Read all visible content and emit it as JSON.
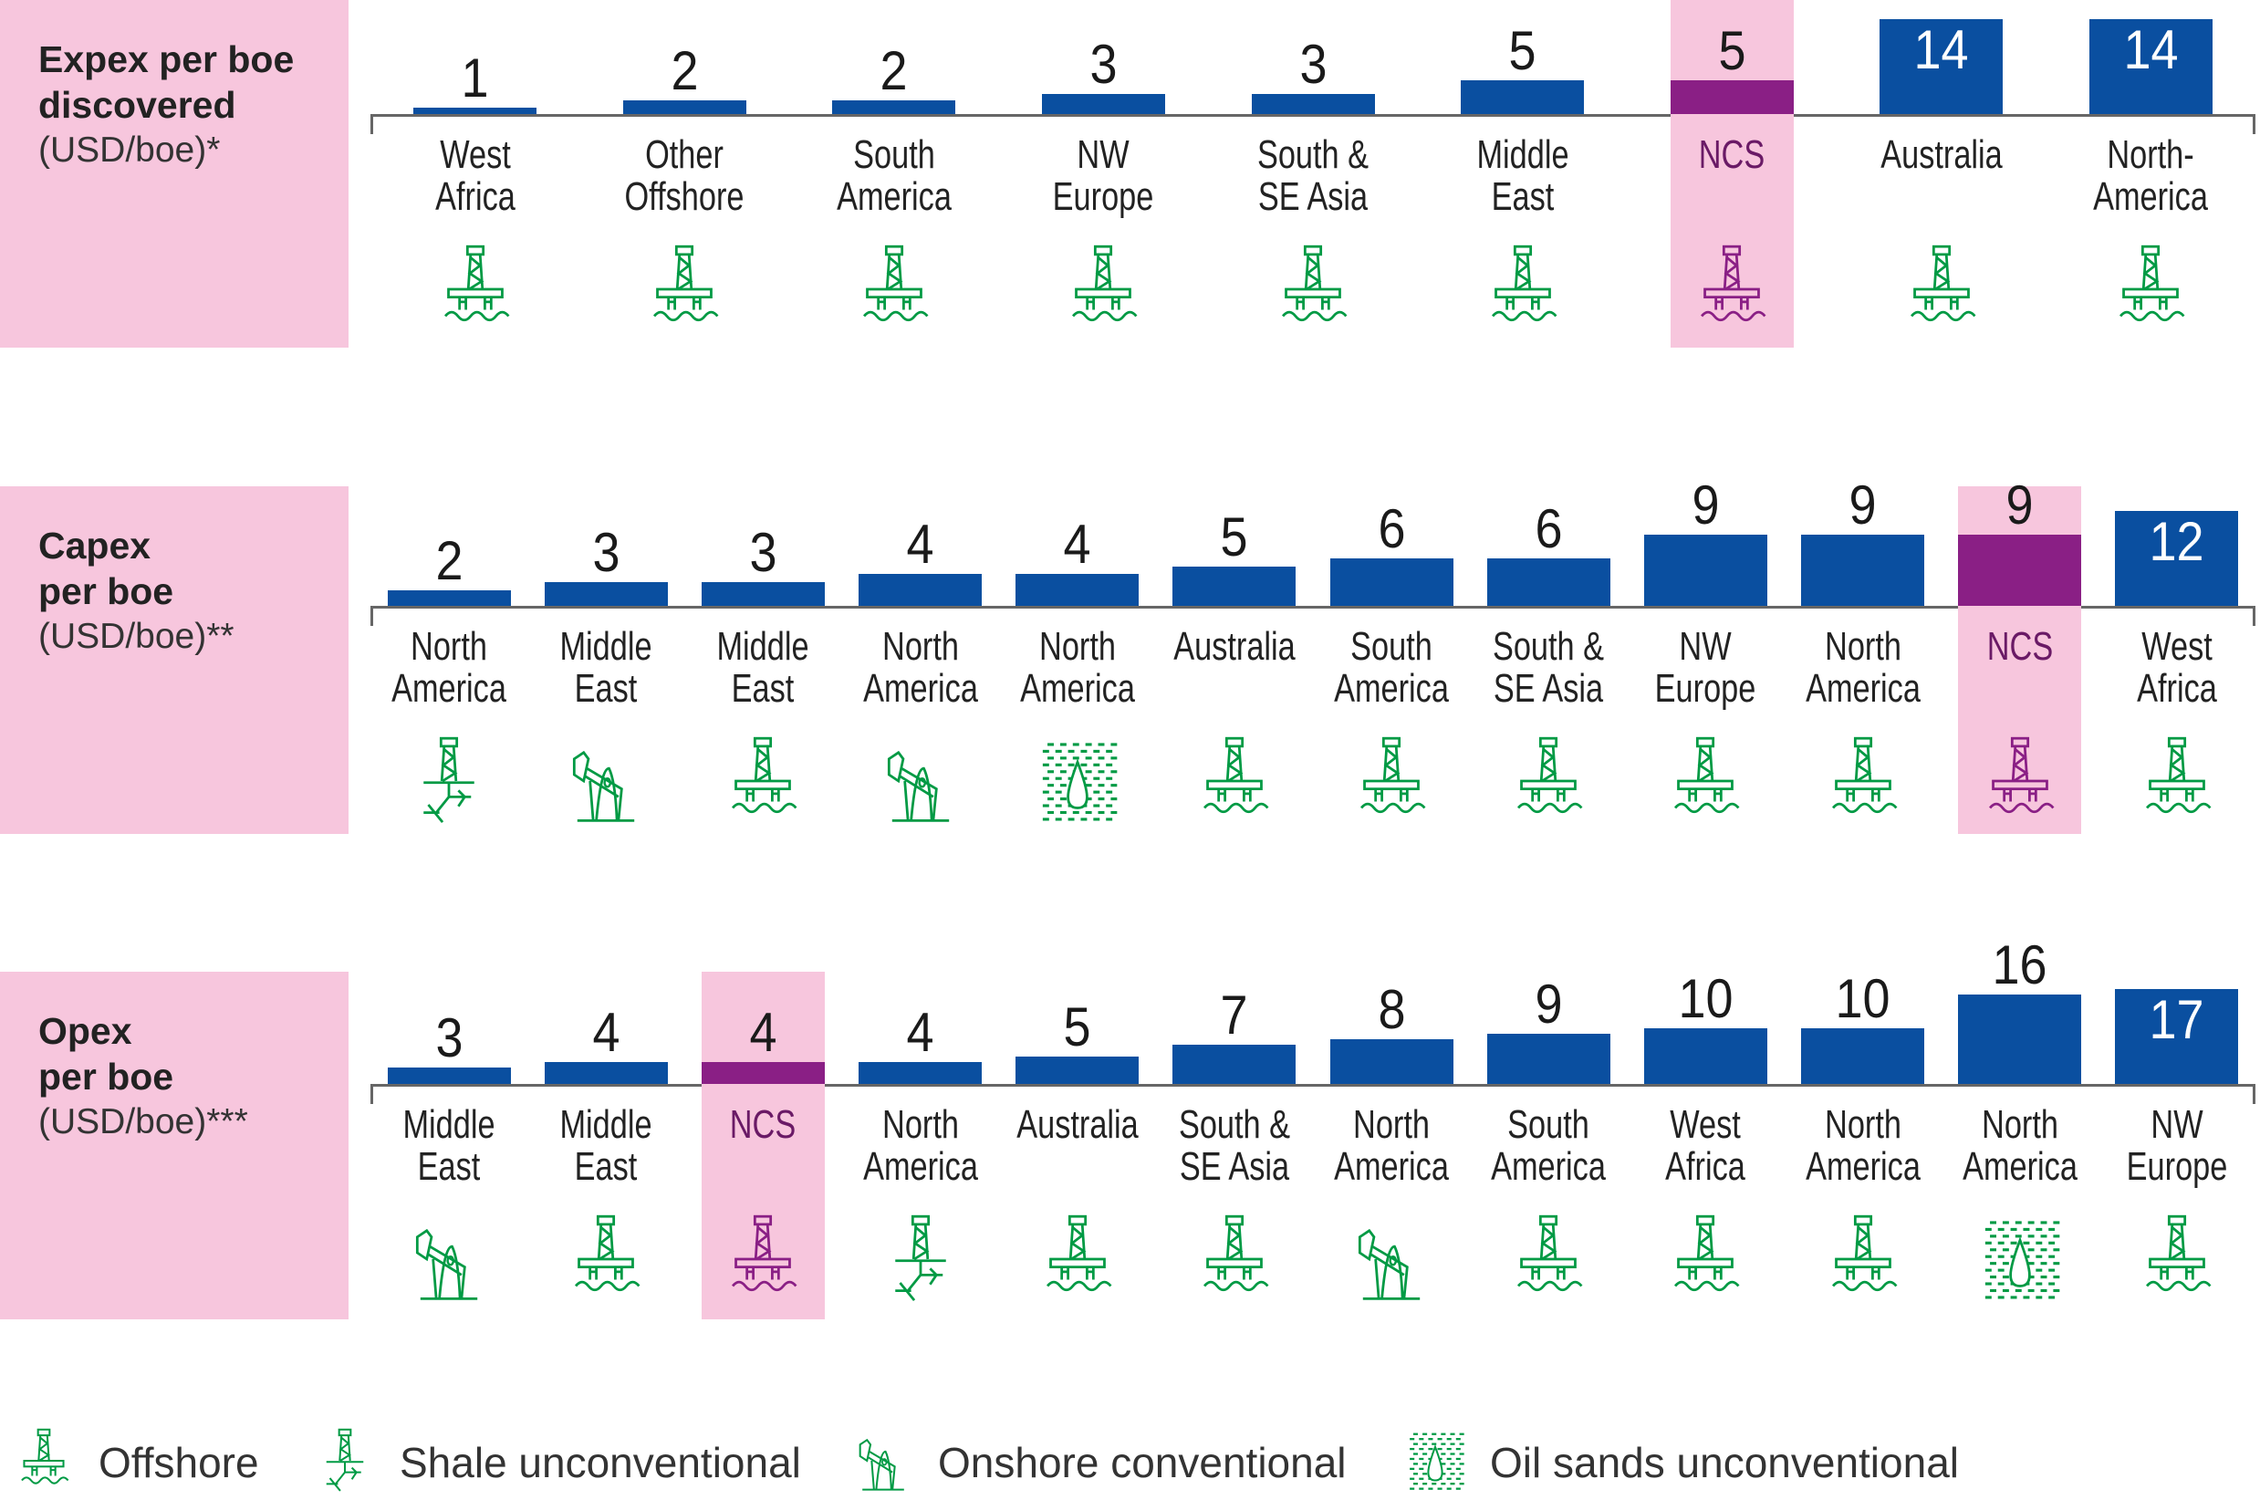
{
  "colors": {
    "bar": "#0A4FA0",
    "highlight_bar": "#8A1F85",
    "highlight_bg": "#F7C6DD",
    "icon": "#009A44",
    "highlight_icon": "#8A1F85",
    "label_bg": "#F7C6DD"
  },
  "chart_data": [
    {
      "type": "bar",
      "title_lines": [
        "Expex per boe",
        "discovered"
      ],
      "unit": "(USD/boe)*",
      "categories": [
        {
          "lines": [
            "West",
            "Africa"
          ],
          "value": 1,
          "type": "offshore",
          "highlight": false
        },
        {
          "lines": [
            "Other",
            "Offshore"
          ],
          "value": 2,
          "type": "offshore",
          "highlight": false
        },
        {
          "lines": [
            "South",
            "America"
          ],
          "value": 2,
          "type": "offshore",
          "highlight": false
        },
        {
          "lines": [
            "NW",
            "Europe"
          ],
          "value": 3,
          "type": "offshore",
          "highlight": false
        },
        {
          "lines": [
            "South &",
            "SE Asia"
          ],
          "value": 3,
          "type": "offshore",
          "highlight": false
        },
        {
          "lines": [
            "Middle",
            "East"
          ],
          "value": 5,
          "type": "offshore",
          "highlight": false
        },
        {
          "lines": [
            "NCS"
          ],
          "value": 5,
          "type": "offshore",
          "highlight": true
        },
        {
          "lines": [
            "Australia"
          ],
          "value": 14,
          "type": "offshore",
          "highlight": false
        },
        {
          "lines": [
            "North-",
            "America"
          ],
          "value": 14,
          "type": "offshore",
          "highlight": false
        }
      ]
    },
    {
      "type": "bar",
      "title_lines": [
        "Capex",
        "per boe"
      ],
      "unit": "(USD/boe)**",
      "categories": [
        {
          "lines": [
            "North",
            "America"
          ],
          "value": 2,
          "type": "shale",
          "highlight": false
        },
        {
          "lines": [
            "Middle",
            "East"
          ],
          "value": 3,
          "type": "onshore",
          "highlight": false
        },
        {
          "lines": [
            "Middle",
            "East"
          ],
          "value": 3,
          "type": "offshore",
          "highlight": false
        },
        {
          "lines": [
            "North",
            "America"
          ],
          "value": 4,
          "type": "onshore",
          "highlight": false
        },
        {
          "lines": [
            "North",
            "America"
          ],
          "value": 4,
          "type": "oilsands",
          "highlight": false
        },
        {
          "lines": [
            "Australia"
          ],
          "value": 5,
          "type": "offshore",
          "highlight": false
        },
        {
          "lines": [
            "South",
            "America"
          ],
          "value": 6,
          "type": "offshore",
          "highlight": false
        },
        {
          "lines": [
            "South &",
            "SE Asia"
          ],
          "value": 6,
          "type": "offshore",
          "highlight": false
        },
        {
          "lines": [
            "NW",
            "Europe"
          ],
          "value": 9,
          "type": "offshore",
          "highlight": false
        },
        {
          "lines": [
            "North",
            "America"
          ],
          "value": 9,
          "type": "offshore",
          "highlight": false
        },
        {
          "lines": [
            "NCS"
          ],
          "value": 9,
          "type": "offshore",
          "highlight": true
        },
        {
          "lines": [
            "West",
            "Africa"
          ],
          "value": 12,
          "type": "offshore",
          "highlight": false
        }
      ]
    },
    {
      "type": "bar",
      "title_lines": [
        "Opex",
        "per boe"
      ],
      "unit": "(USD/boe)***",
      "categories": [
        {
          "lines": [
            "Middle",
            "East"
          ],
          "value": 3,
          "type": "onshore",
          "highlight": false
        },
        {
          "lines": [
            "Middle",
            "East"
          ],
          "value": 4,
          "type": "offshore",
          "highlight": false
        },
        {
          "lines": [
            "NCS"
          ],
          "value": 4,
          "type": "offshore",
          "highlight": true
        },
        {
          "lines": [
            "North",
            "America"
          ],
          "value": 4,
          "type": "shale",
          "highlight": false
        },
        {
          "lines": [
            "Australia"
          ],
          "value": 5,
          "type": "offshore",
          "highlight": false
        },
        {
          "lines": [
            "South &",
            "SE Asia"
          ],
          "value": 7,
          "type": "offshore",
          "highlight": false
        },
        {
          "lines": [
            "North",
            "America"
          ],
          "value": 8,
          "type": "onshore",
          "highlight": false
        },
        {
          "lines": [
            "South",
            "America"
          ],
          "value": 9,
          "type": "offshore",
          "highlight": false
        },
        {
          "lines": [
            "West",
            "Africa"
          ],
          "value": 10,
          "type": "offshore",
          "highlight": false
        },
        {
          "lines": [
            "North",
            "America"
          ],
          "value": 10,
          "type": "offshore",
          "highlight": false
        },
        {
          "lines": [
            "North",
            "America"
          ],
          "value": 16,
          "type": "oilsands",
          "highlight": false
        },
        {
          "lines": [
            "NW",
            "Europe"
          ],
          "value": 17,
          "type": "offshore",
          "highlight": false
        }
      ]
    }
  ],
  "legend": [
    {
      "type": "offshore",
      "label": "Offshore"
    },
    {
      "type": "shale",
      "label": "Shale unconventional"
    },
    {
      "type": "onshore",
      "label": "Onshore conventional"
    },
    {
      "type": "oilsands",
      "label": "Oil sands unconventional"
    }
  ]
}
